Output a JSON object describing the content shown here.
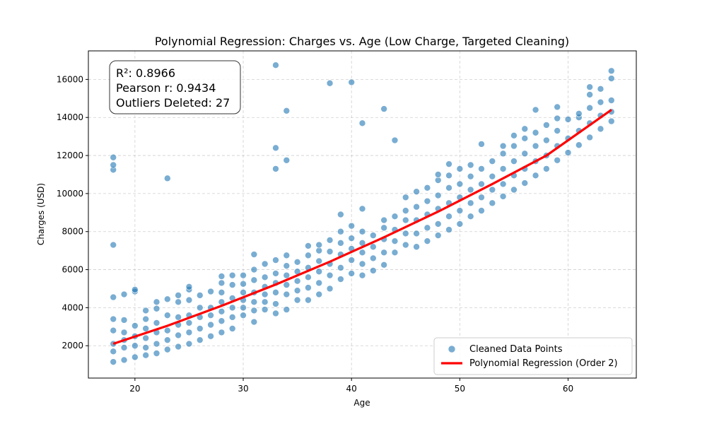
{
  "chart_data": {
    "type": "scatter",
    "title": "Polynomial Regression: Charges vs. Age (Low Charge, Targeted Cleaning)",
    "xlabel": "Age",
    "ylabel": "Charges (USD)",
    "xlim": [
      15.7,
      66.3
    ],
    "ylim": [
      300,
      17500
    ],
    "xticks": [
      20,
      30,
      40,
      50,
      60
    ],
    "yticks": [
      2000,
      4000,
      6000,
      8000,
      10000,
      12000,
      14000,
      16000
    ],
    "grid": true,
    "legend_position": "lower-right",
    "stats": [
      "R²: 0.8966",
      "Pearson r: 0.9434",
      "Outliers Deleted: 27"
    ],
    "legend": [
      {
        "label": "Cleaned Data Points",
        "marker": "circle",
        "color": "#1f77b4"
      },
      {
        "label": "Polynomial Regression (Order 2)",
        "marker": "line",
        "color": "#ff0000"
      }
    ],
    "regression": {
      "name": "Polynomial Regression (Order 2)",
      "color": "#ff0000",
      "x": [
        18,
        23,
        28,
        33,
        38,
        43,
        48,
        53,
        58,
        64
      ],
      "y": [
        2100,
        3050,
        4100,
        5220,
        6420,
        7700,
        9050,
        10500,
        12000,
        14400
      ]
    },
    "series": [
      {
        "name": "Cleaned Data Points",
        "color": "#1f77b4",
        "points": [
          [
            18,
            1150
          ],
          [
            18,
            1700
          ],
          [
            18,
            2100
          ],
          [
            18,
            2800
          ],
          [
            18,
            3400
          ],
          [
            18,
            4550
          ],
          [
            18,
            7300
          ],
          [
            18,
            11250
          ],
          [
            18,
            11500
          ],
          [
            18,
            11900
          ],
          [
            19,
            1250
          ],
          [
            19,
            1900
          ],
          [
            19,
            2300
          ],
          [
            19,
            2700
          ],
          [
            19,
            3350
          ],
          [
            19,
            4700
          ],
          [
            20,
            1400
          ],
          [
            20,
            2000
          ],
          [
            20,
            2500
          ],
          [
            20,
            3050
          ],
          [
            20,
            4850
          ],
          [
            20,
            4950
          ],
          [
            21,
            1500
          ],
          [
            21,
            1900
          ],
          [
            21,
            2400
          ],
          [
            21,
            2900
          ],
          [
            21,
            3400
          ],
          [
            21,
            3850
          ],
          [
            22,
            1600
          ],
          [
            22,
            2100
          ],
          [
            22,
            2700
          ],
          [
            22,
            3200
          ],
          [
            22,
            3950
          ],
          [
            22,
            4300
          ],
          [
            23,
            1800
          ],
          [
            23,
            2300
          ],
          [
            23,
            2800
          ],
          [
            23,
            3600
          ],
          [
            23,
            4450
          ],
          [
            23,
            10800
          ],
          [
            24,
            1950
          ],
          [
            24,
            2550
          ],
          [
            24,
            3100
          ],
          [
            24,
            3500
          ],
          [
            24,
            4300
          ],
          [
            24,
            4650
          ],
          [
            25,
            2100
          ],
          [
            25,
            2700
          ],
          [
            25,
            3200
          ],
          [
            25,
            3600
          ],
          [
            25,
            4400
          ],
          [
            25,
            4950
          ],
          [
            25,
            5100
          ],
          [
            26,
            2300
          ],
          [
            26,
            2900
          ],
          [
            26,
            3500
          ],
          [
            26,
            4000
          ],
          [
            26,
            4650
          ],
          [
            27,
            2500
          ],
          [
            27,
            3100
          ],
          [
            27,
            3600
          ],
          [
            27,
            4000
          ],
          [
            27,
            4850
          ],
          [
            28,
            2700
          ],
          [
            28,
            3300
          ],
          [
            28,
            3800
          ],
          [
            28,
            4300
          ],
          [
            28,
            4800
          ],
          [
            28,
            5300
          ],
          [
            28,
            5650
          ],
          [
            29,
            2900
          ],
          [
            29,
            3500
          ],
          [
            29,
            4000
          ],
          [
            29,
            4500
          ],
          [
            29,
            5200
          ],
          [
            29,
            5700
          ],
          [
            30,
            3600
          ],
          [
            30,
            4000
          ],
          [
            30,
            4400
          ],
          [
            30,
            4800
          ],
          [
            30,
            5250
          ],
          [
            30,
            5700
          ],
          [
            31,
            3250
          ],
          [
            31,
            3850
          ],
          [
            31,
            4300
          ],
          [
            31,
            4800
          ],
          [
            31,
            5450
          ],
          [
            31,
            6000
          ],
          [
            31,
            6800
          ],
          [
            32,
            3900
          ],
          [
            32,
            4300
          ],
          [
            32,
            4700
          ],
          [
            32,
            5100
          ],
          [
            32,
            5600
          ],
          [
            32,
            6300
          ],
          [
            33,
            3700
          ],
          [
            33,
            4200
          ],
          [
            33,
            4800
          ],
          [
            33,
            5300
          ],
          [
            33,
            5800
          ],
          [
            33,
            6500
          ],
          [
            33,
            11300
          ],
          [
            33,
            12400
          ],
          [
            33,
            16750
          ],
          [
            34,
            3900
          ],
          [
            34,
            4700
          ],
          [
            34,
            5200
          ],
          [
            34,
            5700
          ],
          [
            34,
            6200
          ],
          [
            34,
            6750
          ],
          [
            34,
            11750
          ],
          [
            34,
            14350
          ],
          [
            35,
            4400
          ],
          [
            35,
            4900
          ],
          [
            35,
            5400
          ],
          [
            35,
            5900
          ],
          [
            35,
            6400
          ],
          [
            36,
            4400
          ],
          [
            36,
            5050
          ],
          [
            36,
            5600
          ],
          [
            36,
            6100
          ],
          [
            36,
            6750
          ],
          [
            36,
            7250
          ],
          [
            37,
            4700
          ],
          [
            37,
            5300
          ],
          [
            37,
            5900
          ],
          [
            37,
            6450
          ],
          [
            37,
            7000
          ],
          [
            37,
            7300
          ],
          [
            38,
            5000
          ],
          [
            38,
            5700
          ],
          [
            38,
            6300
          ],
          [
            38,
            6950
          ],
          [
            38,
            7550
          ],
          [
            38,
            15800
          ],
          [
            39,
            5500
          ],
          [
            39,
            6100
          ],
          [
            39,
            6800
          ],
          [
            39,
            7400
          ],
          [
            39,
            8000
          ],
          [
            39,
            8900
          ],
          [
            40,
            5800
          ],
          [
            40,
            6500
          ],
          [
            40,
            7100
          ],
          [
            40,
            7650
          ],
          [
            40,
            8300
          ],
          [
            40,
            15850
          ],
          [
            41,
            5700
          ],
          [
            41,
            6300
          ],
          [
            41,
            6900
          ],
          [
            41,
            7400
          ],
          [
            41,
            8000
          ],
          [
            41,
            9200
          ],
          [
            41,
            13700
          ],
          [
            42,
            5950
          ],
          [
            42,
            6600
          ],
          [
            42,
            7200
          ],
          [
            42,
            7800
          ],
          [
            43,
            6250
          ],
          [
            43,
            6900
          ],
          [
            43,
            7600
          ],
          [
            43,
            8200
          ],
          [
            43,
            8600
          ],
          [
            43,
            14450
          ],
          [
            44,
            6900
          ],
          [
            44,
            7500
          ],
          [
            44,
            8100
          ],
          [
            44,
            8800
          ],
          [
            44,
            12800
          ],
          [
            45,
            7300
          ],
          [
            45,
            7900
          ],
          [
            45,
            8600
          ],
          [
            45,
            9100
          ],
          [
            45,
            9800
          ],
          [
            46,
            7200
          ],
          [
            46,
            7900
          ],
          [
            46,
            8600
          ],
          [
            46,
            9300
          ],
          [
            46,
            10100
          ],
          [
            47,
            7500
          ],
          [
            47,
            8200
          ],
          [
            47,
            8900
          ],
          [
            47,
            9600
          ],
          [
            47,
            10300
          ],
          [
            48,
            7800
          ],
          [
            48,
            8400
          ],
          [
            48,
            9200
          ],
          [
            48,
            9900
          ],
          [
            48,
            10700
          ],
          [
            48,
            11000
          ],
          [
            49,
            8100
          ],
          [
            49,
            8800
          ],
          [
            49,
            9500
          ],
          [
            49,
            10300
          ],
          [
            49,
            10950
          ],
          [
            49,
            11550
          ],
          [
            50,
            8400
          ],
          [
            50,
            9100
          ],
          [
            50,
            9800
          ],
          [
            50,
            10500
          ],
          [
            50,
            11300
          ],
          [
            51,
            8800
          ],
          [
            51,
            9500
          ],
          [
            51,
            10200
          ],
          [
            51,
            10900
          ],
          [
            51,
            11500
          ],
          [
            52,
            9100
          ],
          [
            52,
            9800
          ],
          [
            52,
            10500
          ],
          [
            52,
            11300
          ],
          [
            52,
            12600
          ],
          [
            53,
            9500
          ],
          [
            53,
            10200
          ],
          [
            53,
            10900
          ],
          [
            53,
            11700
          ],
          [
            54,
            9850
          ],
          [
            54,
            10500
          ],
          [
            54,
            11300
          ],
          [
            54,
            12100
          ],
          [
            54,
            12500
          ],
          [
            55,
            10200
          ],
          [
            55,
            10950
          ],
          [
            55,
            11700
          ],
          [
            55,
            12500
          ],
          [
            55,
            13050
          ],
          [
            56,
            10550
          ],
          [
            56,
            11300
          ],
          [
            56,
            12100
          ],
          [
            56,
            12900
          ],
          [
            56,
            13400
          ],
          [
            57,
            10950
          ],
          [
            57,
            11700
          ],
          [
            57,
            12500
          ],
          [
            57,
            13200
          ],
          [
            57,
            14400
          ],
          [
            58,
            11300
          ],
          [
            58,
            12000
          ],
          [
            58,
            12800
          ],
          [
            58,
            13600
          ],
          [
            59,
            11750
          ],
          [
            59,
            12500
          ],
          [
            59,
            13300
          ],
          [
            59,
            13950
          ],
          [
            59,
            14550
          ],
          [
            60,
            12150
          ],
          [
            60,
            12900
          ],
          [
            60,
            13900
          ],
          [
            61,
            12550
          ],
          [
            61,
            13300
          ],
          [
            61,
            14000
          ],
          [
            61,
            14200
          ],
          [
            62,
            12950
          ],
          [
            62,
            13700
          ],
          [
            62,
            14500
          ],
          [
            62,
            15200
          ],
          [
            62,
            15600
          ],
          [
            63,
            13400
          ],
          [
            63,
            14100
          ],
          [
            63,
            14800
          ],
          [
            63,
            15500
          ],
          [
            64,
            13800
          ],
          [
            64,
            14300
          ],
          [
            64,
            14900
          ],
          [
            64,
            16050
          ],
          [
            64,
            16450
          ]
        ]
      }
    ]
  }
}
